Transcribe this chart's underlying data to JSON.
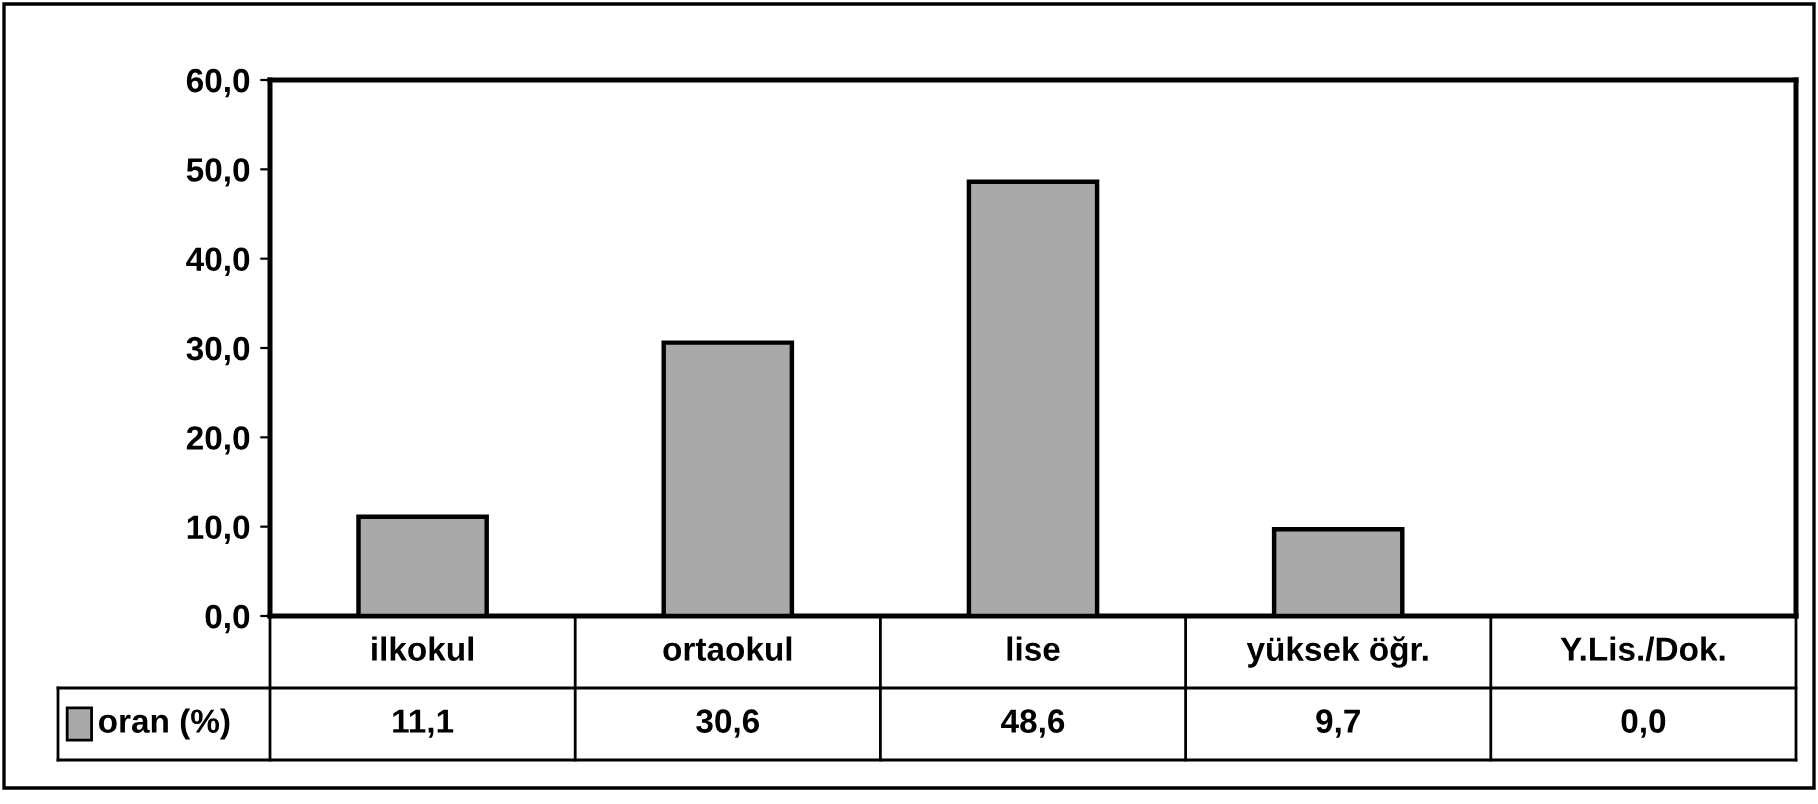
{
  "chart_data": {
    "type": "bar",
    "categories": [
      "ilkokul",
      "ortaokul",
      "lise",
      "yüksek öğr.",
      "Y.Lis./Dok."
    ],
    "series": [
      {
        "name": "oran (%)",
        "color": "#a9a9a9",
        "values": [
          11.1,
          30.6,
          48.6,
          9.7,
          0.0
        ],
        "value_labels": [
          "11,1",
          "30,6",
          "48,6",
          "9,7",
          "0,0"
        ]
      }
    ],
    "ylim": [
      0,
      60
    ],
    "yticks": [
      {
        "value": 0,
        "label": "0,0"
      },
      {
        "value": 10,
        "label": "10,0"
      },
      {
        "value": 20,
        "label": "20,0"
      },
      {
        "value": 30,
        "label": "30,0"
      },
      {
        "value": 40,
        "label": "40,0"
      },
      {
        "value": 50,
        "label": "50,0"
      },
      {
        "value": 60,
        "label": "60,0"
      }
    ],
    "grid": false,
    "legend": "bottom"
  }
}
